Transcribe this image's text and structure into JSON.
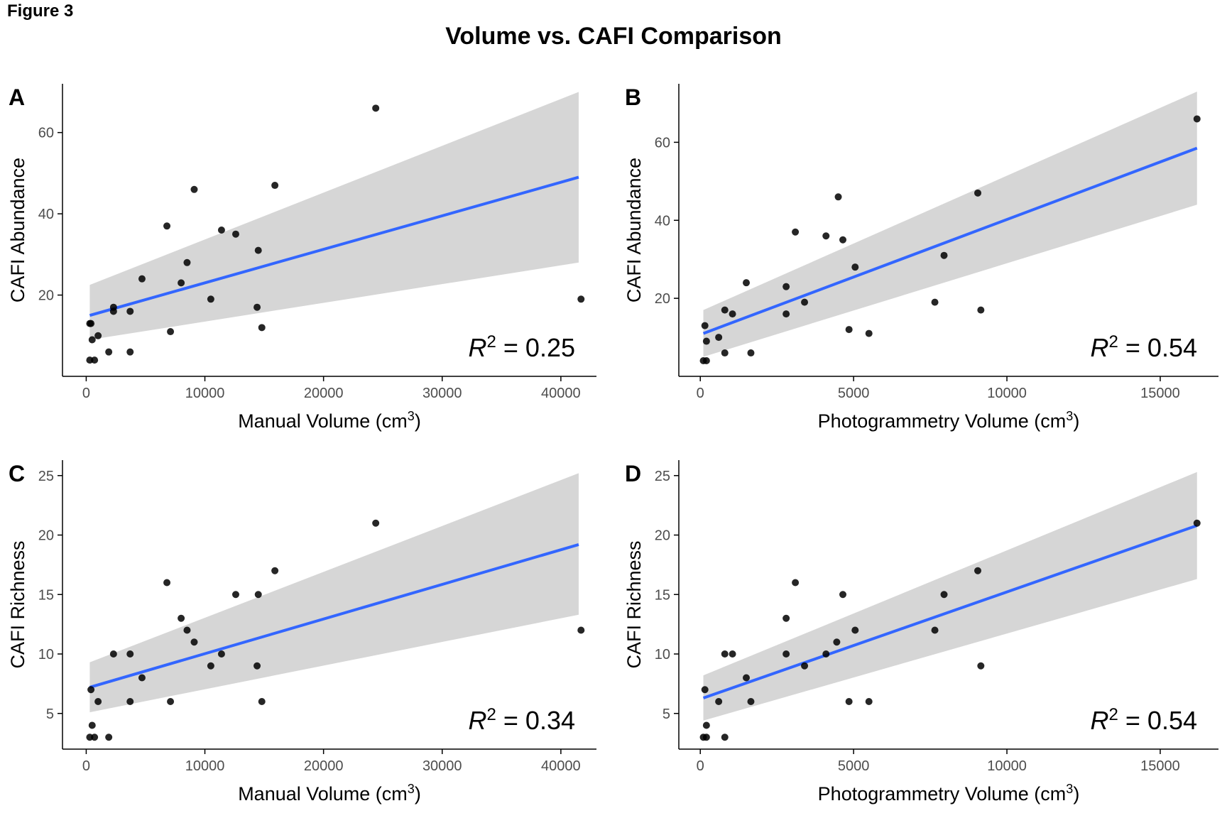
{
  "figure_label": "Figure 3",
  "title": "Volume vs. CAFI Comparison",
  "colors": {
    "fit_line": "#3366FF",
    "ribbon": "#D6D6D6",
    "points": "#000000",
    "axis": "#000000",
    "tick_text": "#4D4D4D"
  },
  "chart_data": [
    {
      "panel": "A",
      "type": "scatter",
      "xlabel": "Manual Volume (cm3)",
      "ylabel": "CAFI Abundance",
      "annotation": {
        "lhs": "R",
        "sup": "2",
        "rhs": " = 0.25"
      },
      "xlim": [
        -2000,
        43000
      ],
      "ylim": [
        0,
        72
      ],
      "xticks": [
        0,
        10000,
        20000,
        30000,
        40000
      ],
      "xtick_labels": [
        "0",
        "10000",
        "20000",
        "30000",
        "40000"
      ],
      "yticks": [
        20,
        40,
        60
      ],
      "ytick_labels": [
        "20",
        "40",
        "60"
      ],
      "fit": {
        "x": [
          300,
          41500
        ],
        "y": [
          15,
          49
        ]
      },
      "ci": {
        "x": [
          300,
          41500
        ],
        "upper": [
          22.5,
          70
        ],
        "lower": [
          9,
          28
        ]
      },
      "points": [
        {
          "x": 300,
          "y": 4
        },
        {
          "x": 700,
          "y": 4
        },
        {
          "x": 400,
          "y": 13
        },
        {
          "x": 300,
          "y": 13
        },
        {
          "x": 500,
          "y": 9
        },
        {
          "x": 1000,
          "y": 10
        },
        {
          "x": 1900,
          "y": 6
        },
        {
          "x": 2300,
          "y": 17
        },
        {
          "x": 2300,
          "y": 16
        },
        {
          "x": 3700,
          "y": 6
        },
        {
          "x": 3700,
          "y": 16
        },
        {
          "x": 4700,
          "y": 24
        },
        {
          "x": 6800,
          "y": 37
        },
        {
          "x": 7100,
          "y": 11
        },
        {
          "x": 8000,
          "y": 23
        },
        {
          "x": 8500,
          "y": 28
        },
        {
          "x": 9100,
          "y": 46
        },
        {
          "x": 10500,
          "y": 19
        },
        {
          "x": 11400,
          "y": 36
        },
        {
          "x": 12600,
          "y": 35
        },
        {
          "x": 14400,
          "y": 17
        },
        {
          "x": 14500,
          "y": 31
        },
        {
          "x": 14800,
          "y": 12
        },
        {
          "x": 15900,
          "y": 47
        },
        {
          "x": 24400,
          "y": 66
        },
        {
          "x": 41700,
          "y": 19
        }
      ]
    },
    {
      "panel": "B",
      "type": "scatter",
      "xlabel": "Photogrammetry Volume (cm3)",
      "ylabel": "CAFI Abundance",
      "annotation": {
        "lhs": "R",
        "sup": "2",
        "rhs": " = 0.54"
      },
      "xlim": [
        -700,
        16900
      ],
      "ylim": [
        0,
        75
      ],
      "xticks": [
        0,
        5000,
        10000,
        15000
      ],
      "xtick_labels": [
        "0",
        "5000",
        "10000",
        "15000"
      ],
      "yticks": [
        20,
        40,
        60
      ],
      "ytick_labels": [
        "20",
        "40",
        "60"
      ],
      "fit": {
        "x": [
          100,
          16200
        ],
        "y": [
          11,
          58.5
        ]
      },
      "ci": {
        "x": [
          100,
          16200
        ],
        "upper": [
          17,
          73
        ],
        "lower": [
          5,
          44
        ]
      },
      "points": [
        {
          "x": 100,
          "y": 4
        },
        {
          "x": 200,
          "y": 4
        },
        {
          "x": 150,
          "y": 13
        },
        {
          "x": 200,
          "y": 9
        },
        {
          "x": 600,
          "y": 10
        },
        {
          "x": 800,
          "y": 6
        },
        {
          "x": 800,
          "y": 17
        },
        {
          "x": 1050,
          "y": 16
        },
        {
          "x": 1500,
          "y": 24
        },
        {
          "x": 1650,
          "y": 6
        },
        {
          "x": 2800,
          "y": 23
        },
        {
          "x": 2800,
          "y": 16
        },
        {
          "x": 3100,
          "y": 37
        },
        {
          "x": 3400,
          "y": 19
        },
        {
          "x": 4100,
          "y": 36
        },
        {
          "x": 4500,
          "y": 46
        },
        {
          "x": 4650,
          "y": 35
        },
        {
          "x": 4850,
          "y": 12
        },
        {
          "x": 5050,
          "y": 28
        },
        {
          "x": 5500,
          "y": 11
        },
        {
          "x": 7650,
          "y": 19
        },
        {
          "x": 7950,
          "y": 31
        },
        {
          "x": 9050,
          "y": 47
        },
        {
          "x": 9150,
          "y": 17
        },
        {
          "x": 16200,
          "y": 66
        }
      ]
    },
    {
      "panel": "C",
      "type": "scatter",
      "xlabel": "Manual Volume (cm3)",
      "ylabel": "CAFI Richness",
      "annotation": {
        "lhs": "R",
        "sup": "2",
        "rhs": " = 0.34"
      },
      "xlim": [
        -2000,
        43000
      ],
      "ylim": [
        2,
        26.3
      ],
      "xticks": [
        0,
        10000,
        20000,
        30000,
        40000
      ],
      "xtick_labels": [
        "0",
        "10000",
        "20000",
        "30000",
        "40000"
      ],
      "yticks": [
        5,
        10,
        15,
        20,
        25
      ],
      "ytick_labels": [
        "5",
        "10",
        "15",
        "20",
        "25"
      ],
      "fit": {
        "x": [
          300,
          41500
        ],
        "y": [
          7.2,
          19.2
        ]
      },
      "ci": {
        "x": [
          300,
          41500
        ],
        "upper": [
          9.3,
          25.2
        ],
        "lower": [
          5.1,
          13.3
        ]
      },
      "points": [
        {
          "x": 300,
          "y": 3
        },
        {
          "x": 700,
          "y": 3
        },
        {
          "x": 400,
          "y": 7
        },
        {
          "x": 500,
          "y": 4
        },
        {
          "x": 1000,
          "y": 6
        },
        {
          "x": 1900,
          "y": 3
        },
        {
          "x": 2300,
          "y": 10
        },
        {
          "x": 3700,
          "y": 10
        },
        {
          "x": 3700,
          "y": 6
        },
        {
          "x": 4700,
          "y": 8
        },
        {
          "x": 6800,
          "y": 16
        },
        {
          "x": 7100,
          "y": 6
        },
        {
          "x": 8000,
          "y": 13
        },
        {
          "x": 8500,
          "y": 12
        },
        {
          "x": 9100,
          "y": 11
        },
        {
          "x": 10500,
          "y": 9
        },
        {
          "x": 11400,
          "y": 10
        },
        {
          "x": 12600,
          "y": 15
        },
        {
          "x": 14400,
          "y": 9
        },
        {
          "x": 14500,
          "y": 15
        },
        {
          "x": 14800,
          "y": 6
        },
        {
          "x": 15900,
          "y": 17
        },
        {
          "x": 24400,
          "y": 21
        },
        {
          "x": 41700,
          "y": 12
        }
      ]
    },
    {
      "panel": "D",
      "type": "scatter",
      "xlabel": "Photogrammetry Volume (cm3)",
      "ylabel": "CAFI Richness",
      "annotation": {
        "lhs": "R",
        "sup": "2",
        "rhs": " = 0.54"
      },
      "xlim": [
        -700,
        16900
      ],
      "ylim": [
        2,
        26.3
      ],
      "xticks": [
        0,
        5000,
        10000,
        15000
      ],
      "xtick_labels": [
        "0",
        "5000",
        "10000",
        "15000"
      ],
      "yticks": [
        5,
        10,
        15,
        20,
        25
      ],
      "ytick_labels": [
        "5",
        "10",
        "15",
        "20",
        "25"
      ],
      "fit": {
        "x": [
          100,
          16200
        ],
        "y": [
          6.3,
          20.8
        ]
      },
      "ci": {
        "x": [
          100,
          16200
        ],
        "upper": [
          8.2,
          25.3
        ],
        "lower": [
          4.4,
          16.3
        ]
      },
      "points": [
        {
          "x": 100,
          "y": 3
        },
        {
          "x": 200,
          "y": 3
        },
        {
          "x": 150,
          "y": 7
        },
        {
          "x": 200,
          "y": 4
        },
        {
          "x": 600,
          "y": 6
        },
        {
          "x": 800,
          "y": 3
        },
        {
          "x": 800,
          "y": 10
        },
        {
          "x": 1050,
          "y": 10
        },
        {
          "x": 1500,
          "y": 8
        },
        {
          "x": 1650,
          "y": 6
        },
        {
          "x": 2800,
          "y": 13
        },
        {
          "x": 2800,
          "y": 10
        },
        {
          "x": 3100,
          "y": 16
        },
        {
          "x": 3400,
          "y": 9
        },
        {
          "x": 4100,
          "y": 10
        },
        {
          "x": 4450,
          "y": 11
        },
        {
          "x": 4650,
          "y": 15
        },
        {
          "x": 4850,
          "y": 6
        },
        {
          "x": 5050,
          "y": 12
        },
        {
          "x": 5500,
          "y": 6
        },
        {
          "x": 7650,
          "y": 12
        },
        {
          "x": 7950,
          "y": 15
        },
        {
          "x": 9050,
          "y": 17
        },
        {
          "x": 9150,
          "y": 9
        },
        {
          "x": 16200,
          "y": 21
        }
      ]
    }
  ]
}
